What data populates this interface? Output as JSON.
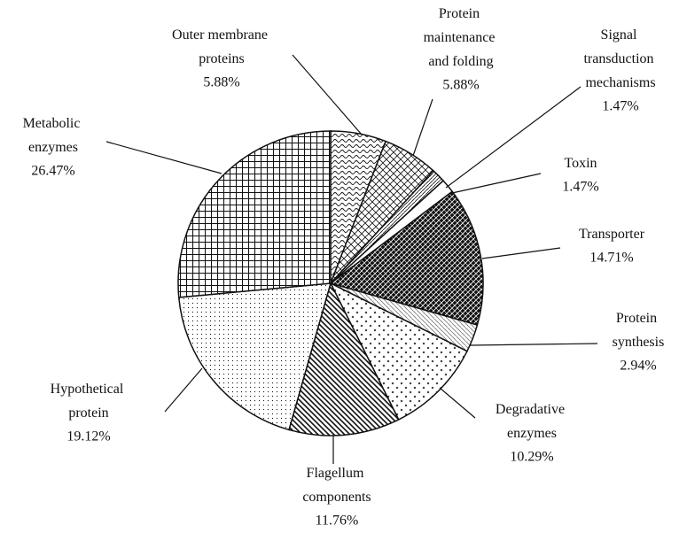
{
  "chart_data": {
    "type": "pie",
    "categories": [
      "Outer membrane proteins",
      "Protein maintenance and folding",
      "Signal transduction mechanisms",
      "Toxin",
      "Transporter",
      "Protein synthesis",
      "Degradative enzymes",
      "Flagellum components",
      "Hypothetical protein",
      "Metabolic enzymes"
    ],
    "values": [
      5.88,
      5.88,
      1.47,
      1.47,
      14.71,
      2.94,
      10.29,
      11.76,
      19.12,
      26.47
    ],
    "value_labels": [
      "5.88%",
      "5.88%",
      "1.47%",
      "1.47%",
      "14.71%",
      "2.94%",
      "10.29%",
      "11.76%",
      "19.12%",
      "26.47%"
    ]
  }
}
